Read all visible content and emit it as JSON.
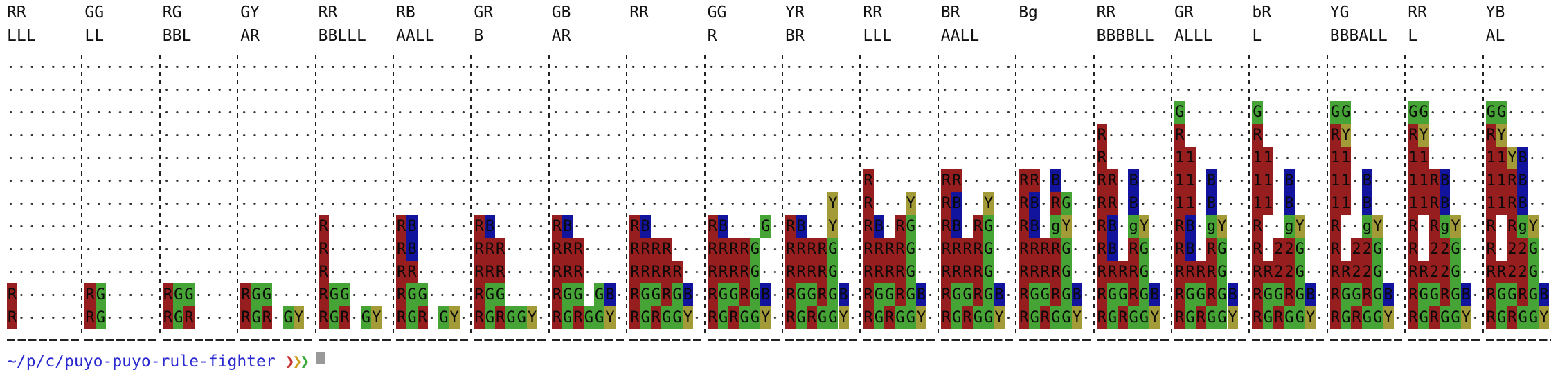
{
  "colors": {
    "R": "#971e1e",
    "G": "#46a335",
    "B": "#13149e",
    "Y": "#a39a38",
    "g": "#46a335",
    "1": "#971e1e",
    "2": "#971e1e"
  },
  "empty_cell_char": ".",
  "panels": [
    {
      "hdr1": "RR",
      "hdr2": "LLL",
      "rows": [
        "......",
        "......",
        "......",
        "......",
        "......",
        "......",
        "......",
        "......",
        "......",
        "......",
        "R.....",
        "R....."
      ]
    },
    {
      "hdr1": "GG",
      "hdr2": "LL",
      "rows": [
        "......",
        "......",
        "......",
        "......",
        "......",
        "......",
        "......",
        "......",
        "......",
        "......",
        "RG....",
        "RG...."
      ]
    },
    {
      "hdr1": "RG",
      "hdr2": "BBL",
      "rows": [
        "......",
        "......",
        "......",
        "......",
        "......",
        "......",
        "......",
        "......",
        "......",
        "......",
        "RGG...",
        "RGR..."
      ]
    },
    {
      "hdr1": "GY",
      "hdr2": "AR",
      "rows": [
        "......",
        "......",
        "......",
        "......",
        "......",
        "......",
        "......",
        "......",
        "......",
        "......",
        "RGG...",
        "RGR.GY"
      ]
    },
    {
      "hdr1": "RR",
      "hdr2": "BBLLL",
      "rows": [
        "......",
        "......",
        "......",
        "......",
        "......",
        "......",
        "......",
        "R.....",
        "R.....",
        "R.....",
        "RGG...",
        "RGR.GY"
      ]
    },
    {
      "hdr1": "RB",
      "hdr2": "AALL",
      "rows": [
        "......",
        "......",
        "......",
        "......",
        "......",
        "......",
        "......",
        "RB....",
        "RB....",
        "RR....",
        "RGG...",
        "RGR.GY"
      ]
    },
    {
      "hdr1": "GR",
      "hdr2": "B",
      "rows": [
        "......",
        "......",
        "......",
        "......",
        "......",
        "......",
        "......",
        "RB....",
        "RRR...",
        "RRR...",
        "RGG...",
        "RGRGGY"
      ]
    },
    {
      "hdr1": "GB",
      "hdr2": "AR",
      "rows": [
        "......",
        "......",
        "......",
        "......",
        "......",
        "......",
        "......",
        "RB....",
        "RRR...",
        "RRR...",
        "RGG.GB",
        "RGRGGY"
      ]
    },
    {
      "hdr1": "RR",
      "hdr2": "",
      "rows": [
        "......",
        "......",
        "......",
        "......",
        "......",
        "......",
        "......",
        "RB....",
        "RRRR..",
        "RRRRR.",
        "RGGRGB",
        "RGRGGY"
      ]
    },
    {
      "hdr1": "GG",
      "hdr2": "R",
      "rows": [
        "......",
        "......",
        "......",
        "......",
        "......",
        "......",
        "......",
        "RB...G",
        "RRRRG.",
        "RRRRG.",
        "RGGRGB",
        "RGRGGY"
      ]
    },
    {
      "hdr1": "YR",
      "hdr2": "BR",
      "rows": [
        "......",
        "......",
        "......",
        "......",
        "......",
        "......",
        "....Y.",
        "RB..Y.",
        "RRRRG.",
        "RRRRG.",
        "RGGRGB",
        "RGRGGY"
      ]
    },
    {
      "hdr1": "RR",
      "hdr2": "LLL",
      "rows": [
        "......",
        "......",
        "......",
        "......",
        "......",
        "R.....",
        "R...Y.",
        "RB.RG.",
        "RRRRG.",
        "RRRRG.",
        "RGGRGB",
        "RGRGGY"
      ]
    },
    {
      "hdr1": "BR",
      "hdr2": "AALL",
      "rows": [
        "......",
        "......",
        "......",
        "......",
        "......",
        "RR....",
        "RB..Y.",
        "RB.RG.",
        "RRRRG.",
        "RRRRG.",
        "RGGRGB",
        "RGRGGY"
      ]
    },
    {
      "hdr1": "Bg",
      "hdr2": "",
      "rows": [
        "......",
        "......",
        "......",
        "......",
        "......",
        "RR.B..",
        "RB.RG.",
        "RB.gY.",
        "RRRRG.",
        "RRRRG.",
        "RGGRGB",
        "RGRGGY"
      ]
    },
    {
      "hdr1": "RR",
      "hdr2": "BBBBLL",
      "rows": [
        "......",
        "......",
        "......",
        "R.....",
        "R.....",
        "RR.B..",
        "RR.B..",
        "RB.gY.",
        "RB.RG.",
        "RRRRG.",
        "RGGRGB",
        "RGRGGY"
      ]
    },
    {
      "hdr1": "GR",
      "hdr2": "ALLL",
      "rows": [
        "......",
        "......",
        "G.....",
        "R.....",
        "11....",
        "11.B..",
        "11.B..",
        "RB.gY.",
        "RB.RG.",
        "RRRRG.",
        "RGGRGB",
        "RGRGGY"
      ]
    },
    {
      "hdr1": "bR",
      "hdr2": "L",
      "rows": [
        "......",
        "......",
        "G.....",
        "R.....",
        "11....",
        "11.B..",
        "11.B..",
        "R..gY.",
        "R.22G.",
        "RR22G.",
        "RGGRGB",
        "RGRGGY"
      ]
    },
    {
      "hdr1": "YG",
      "hdr2": "BBBALL",
      "rows": [
        "......",
        "......",
        "GG....",
        "RY....",
        "11....",
        "11.B..",
        "11.B..",
        "R..gY.",
        "R.22G.",
        "RR22G.",
        "RGGRGB",
        "RGRGGY"
      ]
    },
    {
      "hdr1": "RR",
      "hdr2": "L",
      "rows": [
        "......",
        "......",
        "GG....",
        "RY....",
        "11....",
        "11RB..",
        "11RB..",
        "R.RgY.",
        "R.22G.",
        "RR22G.",
        "RGGRGB",
        "RGRGGY"
      ]
    },
    {
      "hdr1": "YB",
      "hdr2": "AL",
      "rows": [
        "......",
        "......",
        "GG....",
        "RY....",
        "11YB..",
        "11RB..",
        "11RB..",
        "R.RgY.",
        "R.22G.",
        "RR22G.",
        "RGGRGB",
        "RGRGGY"
      ]
    }
  ],
  "prompt": {
    "path": "~/p/c/puyo-puyo-rule-fighter",
    "arrows": [
      "❯",
      "❯",
      "❯"
    ]
  }
}
